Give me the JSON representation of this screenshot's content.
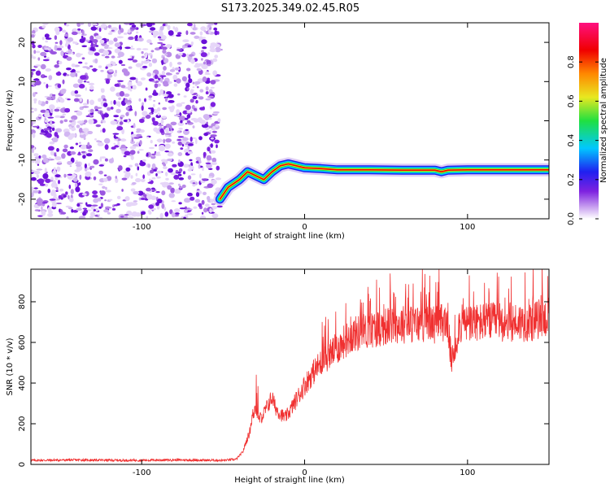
{
  "chart_data": [
    {
      "type": "heatmap",
      "title": "S173.2025.349.02.45.R05",
      "xlabel": "Height of straight line (km)",
      "ylabel": "Frequency (Hz)",
      "xlim": [
        -168,
        150
      ],
      "ylim": [
        -25,
        25
      ],
      "xticks": [
        -100,
        0,
        100
      ],
      "yticks": [
        -20,
        -10,
        0,
        10,
        20
      ],
      "xtick_labels": [
        "-100",
        "0",
        "100"
      ],
      "ytick_labels": [
        "-20",
        "-10",
        "0",
        "10",
        "20"
      ],
      "noise_region": {
        "x_from": -168,
        "x_to": -52
      },
      "ridge": {
        "x": [
          -52,
          -47,
          -40,
          -35,
          -30,
          -25,
          -20,
          -15,
          -10,
          -5,
          0,
          10,
          20,
          40,
          60,
          80,
          84,
          88,
          100,
          120,
          150
        ],
        "y": [
          -20,
          -17,
          -15,
          -13,
          -14,
          -15,
          -13,
          -11.5,
          -11,
          -11.5,
          -12,
          -12.2,
          -12.5,
          -12.5,
          -12.6,
          -12.6,
          -13,
          -12.6,
          -12.5,
          -12.5,
          -12.5
        ]
      },
      "colorbar": {
        "label": "Normalized spectral amplitude",
        "range": [
          0,
          1
        ],
        "ticks": [
          0.0,
          0.2,
          0.4,
          0.6,
          0.8
        ],
        "tick_labels": [
          "0.0",
          "0.2",
          "0.4",
          "0.6",
          "0.8"
        ],
        "colors": [
          "#ffffff",
          "#7e22e0",
          "#2020f0",
          "#00c8ff",
          "#20e040",
          "#e8e820",
          "#ff8800",
          "#f00000",
          "#ff1080"
        ]
      }
    },
    {
      "type": "line",
      "title": "",
      "xlabel": "Height of straight line (km)",
      "ylabel": "SNR (10 * v/v)",
      "xlim": [
        -168,
        150
      ],
      "ylim": [
        0,
        960
      ],
      "xticks": [
        -100,
        0,
        100
      ],
      "yticks": [
        0,
        200,
        400,
        600,
        800
      ],
      "xtick_labels": [
        "-100",
        "0",
        "100"
      ],
      "ytick_labels": [
        "0",
        "200",
        "400",
        "600",
        "800"
      ],
      "color": "#f03030",
      "series": [
        {
          "name": "SNR",
          "x": [
            -168,
            -140,
            -110,
            -80,
            -50,
            -42,
            -38,
            -36,
            -34,
            -32,
            -30,
            -28,
            -25,
            -22,
            -20,
            -18,
            -15,
            -12,
            -10,
            -5,
            0,
            5,
            10,
            15,
            20,
            25,
            30,
            40,
            50,
            60,
            70,
            75,
            80,
            85,
            88,
            90,
            92,
            95,
            100,
            110,
            120,
            130,
            140,
            145,
            150
          ],
          "y": [
            20,
            22,
            20,
            22,
            20,
            25,
            60,
            110,
            150,
            240,
            280,
            220,
            250,
            300,
            330,
            280,
            250,
            230,
            250,
            320,
            390,
            450,
            500,
            540,
            570,
            610,
            640,
            660,
            680,
            690,
            690,
            700,
            690,
            700,
            700,
            500,
            560,
            690,
            690,
            700,
            700,
            700,
            700,
            720,
            720
          ]
        }
      ]
    }
  ]
}
